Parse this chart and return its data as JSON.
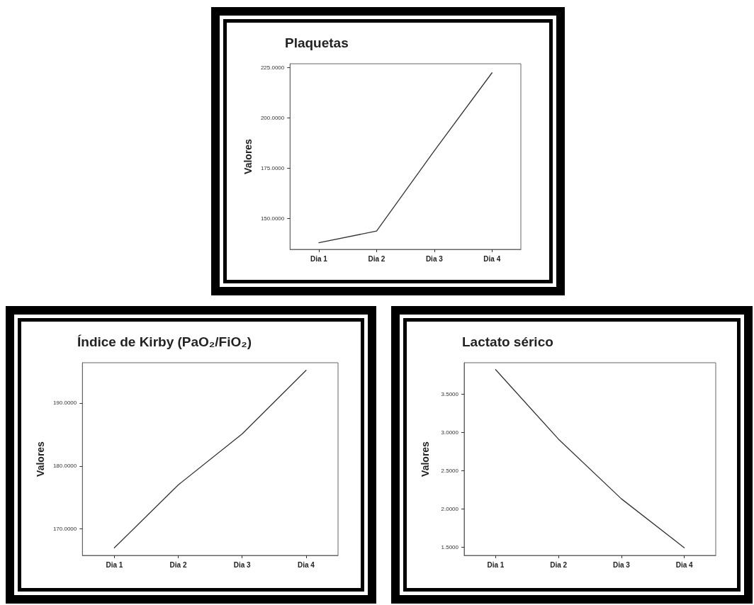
{
  "chart_data": [
    {
      "type": "line",
      "title": "Plaquetas",
      "ylabel": "Valores",
      "categories": [
        "Dia 1",
        "Dia 2",
        "Dia 3",
        "Dia 4"
      ],
      "values": [
        137.9,
        143.7,
        183.7,
        222.5
      ],
      "color": "#333333",
      "ylim": [
        134.6,
        227
      ],
      "yticks": [
        {
          "value": 150,
          "label": "150.0000"
        },
        {
          "value": 175,
          "label": "175.0000"
        },
        {
          "value": 200,
          "label": "200.0000"
        },
        {
          "value": 225,
          "label": "225.0000"
        }
      ],
      "grid": false,
      "marker": "none",
      "line_style": "solid"
    },
    {
      "type": "line",
      "title": "Índice de Kirby (PaO₂/FiO₂)",
      "ylabel": "Valores",
      "categories": [
        "Dia 1",
        "Dia 2",
        "Dia 3",
        "Dia 4"
      ],
      "values": [
        167.0,
        177.0,
        185.1,
        195.2
      ],
      "color": "#333333",
      "ylim": [
        165.8,
        196.4
      ],
      "yticks": [
        {
          "value": 170,
          "label": "170.0000"
        },
        {
          "value": 180,
          "label": "180.0000"
        },
        {
          "value": 190,
          "label": "190.0000"
        }
      ],
      "grid": false,
      "marker": "none",
      "line_style": "solid"
    },
    {
      "type": "line",
      "title": "Lactato sérico",
      "ylabel": "Valores",
      "categories": [
        "Dia 1",
        "Dia 2",
        "Dia 3",
        "Dia 4"
      ],
      "values": [
        3.82,
        2.91,
        2.13,
        1.49
      ],
      "color": "#333333",
      "ylim": [
        1.39,
        3.91
      ],
      "yticks": [
        {
          "value": 1.5,
          "label": "1.5000"
        },
        {
          "value": 2,
          "label": "2.0000"
        },
        {
          "value": 2.5,
          "label": "2.5000"
        },
        {
          "value": 3,
          "label": "3.0000"
        },
        {
          "value": 3.5,
          "label": "3.5000"
        }
      ],
      "grid": false,
      "marker": "none",
      "line_style": "solid"
    }
  ]
}
